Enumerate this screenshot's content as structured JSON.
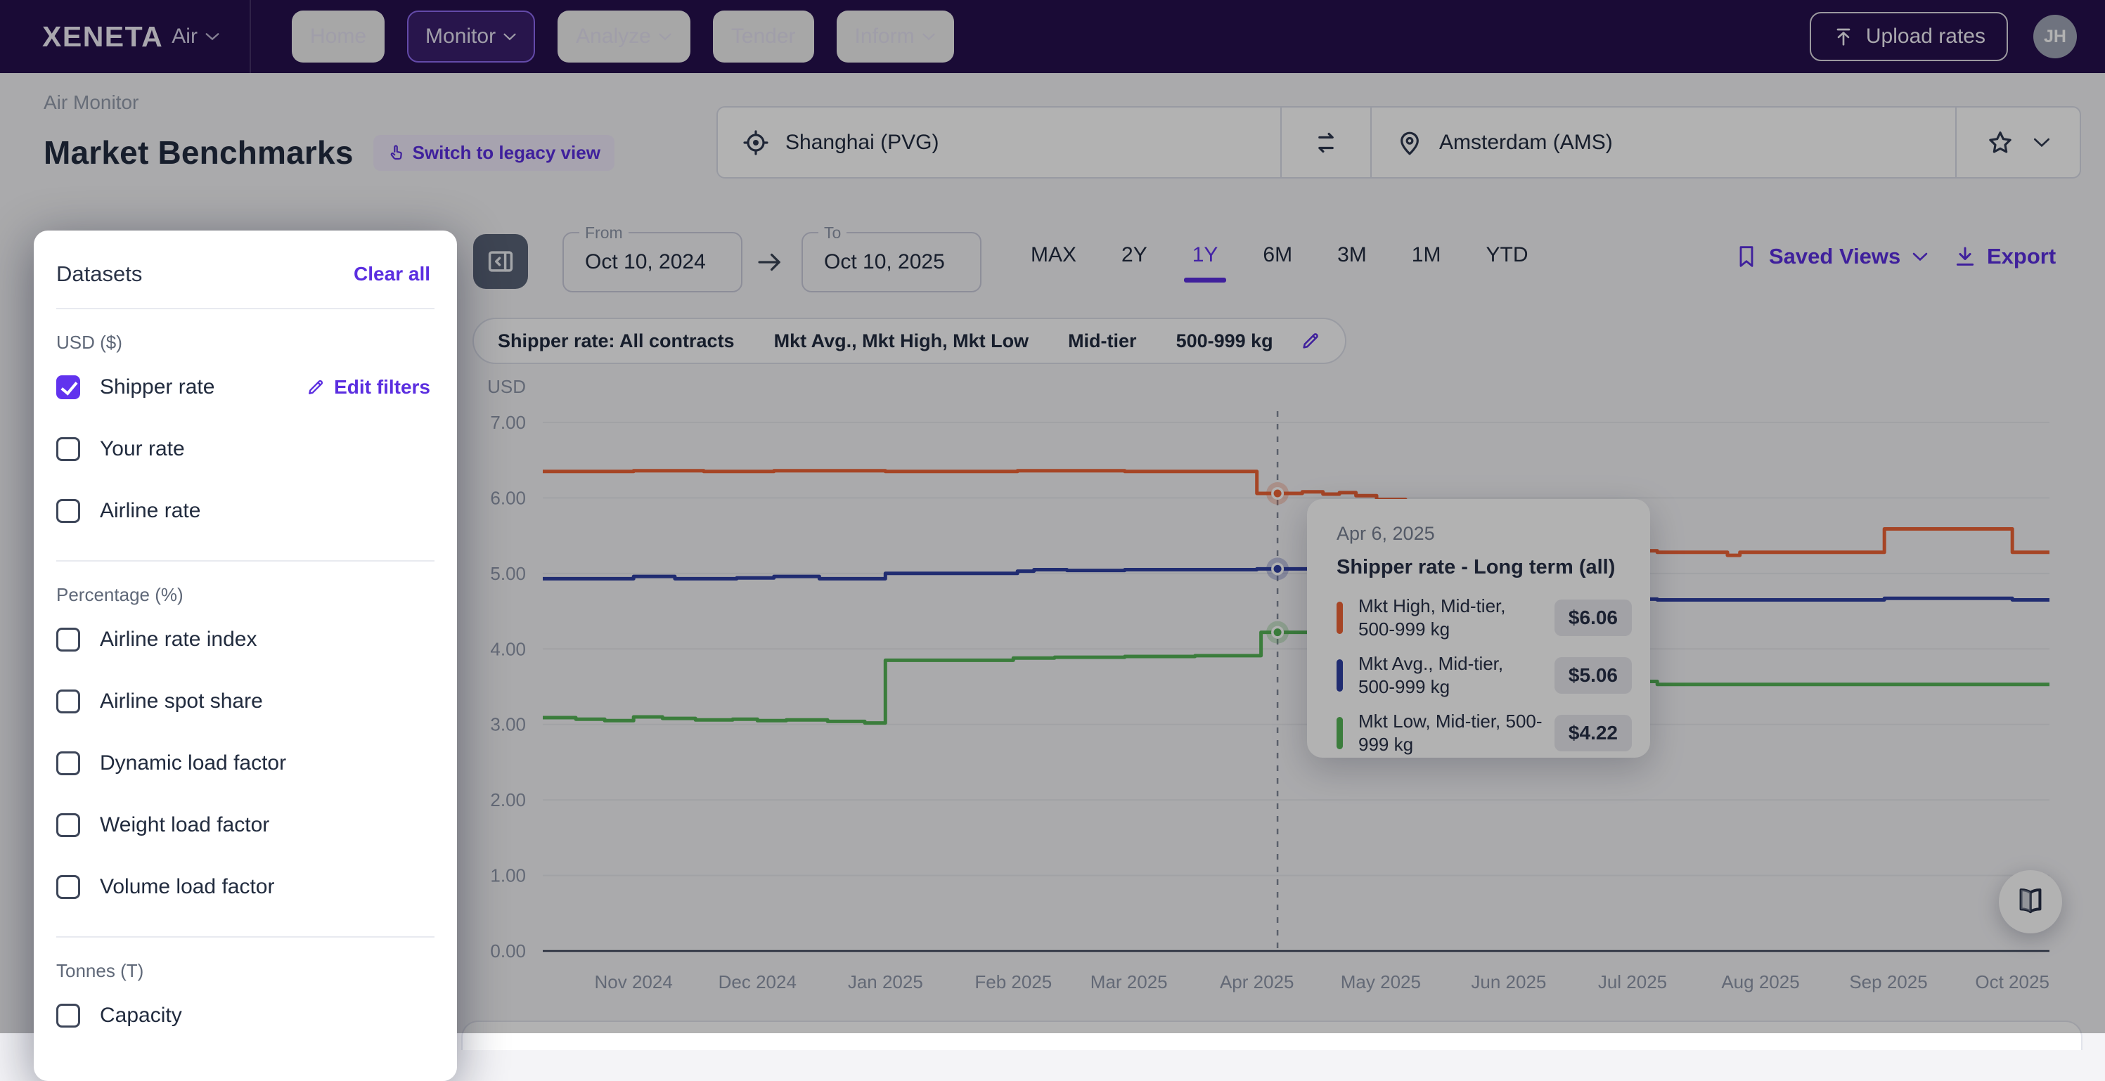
{
  "navbar": {
    "brand": "XENETA",
    "product": "Air",
    "items": [
      {
        "label": "Home",
        "caret": false,
        "active": false
      },
      {
        "label": "Monitor",
        "caret": true,
        "active": true
      },
      {
        "label": "Analyze",
        "caret": true,
        "active": false
      },
      {
        "label": "Tender",
        "caret": false,
        "active": false
      },
      {
        "label": "Inform",
        "caret": true,
        "active": false
      }
    ],
    "upload_label": "Upload rates",
    "avatar_initials": "JH"
  },
  "header": {
    "breadcrumb": "Air Monitor",
    "title": "Market Benchmarks",
    "switch_label": "Switch to legacy view",
    "origin": "Shanghai (PVG)",
    "destination": "Amsterdam (AMS)"
  },
  "sidebar": {
    "title": "Datasets",
    "clear_all": "Clear all",
    "sections": [
      {
        "label": "USD ($)",
        "items": [
          {
            "label": "Shipper rate",
            "checked": true,
            "action": "Edit filters"
          },
          {
            "label": "Your rate",
            "checked": false
          },
          {
            "label": "Airline rate",
            "checked": false
          }
        ]
      },
      {
        "label": "Percentage (%)",
        "items": [
          {
            "label": "Airline rate index",
            "checked": false
          },
          {
            "label": "Airline spot share",
            "checked": false
          },
          {
            "label": "Dynamic load factor",
            "checked": false
          },
          {
            "label": "Weight load factor",
            "checked": false
          },
          {
            "label": "Volume load factor",
            "checked": false
          }
        ]
      },
      {
        "label": "Tonnes (T)",
        "items": [
          {
            "label": "Capacity",
            "checked": false
          }
        ]
      }
    ]
  },
  "controls": {
    "from_label": "From",
    "from_value": "Oct 10, 2024",
    "to_label": "To",
    "to_value": "Oct 10, 2025",
    "ranges": [
      "MAX",
      "2Y",
      "1Y",
      "6M",
      "3M",
      "1M",
      "YTD"
    ],
    "active_range": "1Y",
    "saved_views_label": "Saved Views",
    "export_label": "Export"
  },
  "chips": {
    "items": [
      "Shipper rate: All contracts",
      "Mkt Avg., Mkt High, Mkt Low",
      "Mid-tier",
      "500-999 kg"
    ]
  },
  "chart_data": {
    "type": "line",
    "ylabel": "USD",
    "ylim": [
      0,
      7
    ],
    "yticks": [
      "0.00",
      "1.00",
      "2.00",
      "3.00",
      "4.00",
      "5.00",
      "6.00",
      "7.00"
    ],
    "grid": true,
    "legend": false,
    "x_range_days": [
      0,
      365
    ],
    "x_start_date": "Oct 10, 2024",
    "x_end_date": "Oct 10, 2025",
    "x_ticks": [
      {
        "label": "Nov 2024",
        "day": 22
      },
      {
        "label": "Dec 2024",
        "day": 52
      },
      {
        "label": "Jan 2025",
        "day": 83
      },
      {
        "label": "Feb 2025",
        "day": 114
      },
      {
        "label": "Mar 2025",
        "day": 142
      },
      {
        "label": "Apr 2025",
        "day": 173
      },
      {
        "label": "May 2025",
        "day": 203
      },
      {
        "label": "Jun 2025",
        "day": 234
      },
      {
        "label": "Jul 2025",
        "day": 264
      },
      {
        "label": "Aug 2025",
        "day": 295
      },
      {
        "label": "Sep 2025",
        "day": 326
      },
      {
        "label": "Oct 2025",
        "day": 356
      }
    ],
    "highlight_day": 178,
    "series": [
      {
        "name": "Mkt High, Mid-tier, 500-999 kg",
        "color": "#EE6336",
        "points": [
          [
            0,
            6.35
          ],
          [
            22,
            6.36
          ],
          [
            39,
            6.35
          ],
          [
            56,
            6.36
          ],
          [
            83,
            6.35
          ],
          [
            115,
            6.36
          ],
          [
            141,
            6.35
          ],
          [
            173,
            6.06
          ],
          [
            184,
            6.08
          ],
          [
            189,
            6.05
          ],
          [
            193,
            6.07
          ],
          [
            197,
            6.03
          ],
          [
            202,
            5.98
          ],
          [
            209,
            5.92
          ],
          [
            218,
            5.83
          ],
          [
            226,
            5.74
          ],
          [
            235,
            5.64
          ],
          [
            243,
            5.55
          ],
          [
            252,
            5.45
          ],
          [
            260,
            5.36
          ],
          [
            265,
            5.3
          ],
          [
            270,
            5.28
          ],
          [
            286,
            5.28
          ],
          [
            287,
            5.24
          ],
          [
            290,
            5.28
          ],
          [
            311,
            5.28
          ],
          [
            325,
            5.59
          ],
          [
            356,
            5.28
          ],
          [
            365,
            5.28
          ]
        ]
      },
      {
        "name": "Mkt Avg., Mid-tier, 500-999 kg",
        "color": "#2F3FA3",
        "points": [
          [
            0,
            4.93
          ],
          [
            22,
            4.96
          ],
          [
            32,
            4.93
          ],
          [
            47,
            4.94
          ],
          [
            56,
            4.96
          ],
          [
            67,
            4.93
          ],
          [
            83,
            5.0
          ],
          [
            98,
            5.0
          ],
          [
            115,
            5.03
          ],
          [
            119,
            5.05
          ],
          [
            127,
            5.04
          ],
          [
            141,
            5.05
          ],
          [
            158,
            5.05
          ],
          [
            173,
            5.06
          ],
          [
            189,
            5.06
          ],
          [
            202,
            5.02
          ],
          [
            212,
            4.96
          ],
          [
            226,
            4.88
          ],
          [
            240,
            4.8
          ],
          [
            253,
            4.72
          ],
          [
            265,
            4.66
          ],
          [
            270,
            4.65
          ],
          [
            325,
            4.67
          ],
          [
            356,
            4.65
          ],
          [
            365,
            4.65
          ]
        ]
      },
      {
        "name": "Mkt Low, Mid-tier, 500-999 kg",
        "color": "#55B356",
        "points": [
          [
            0,
            3.09
          ],
          [
            8,
            3.07
          ],
          [
            15,
            3.05
          ],
          [
            22,
            3.1
          ],
          [
            29,
            3.08
          ],
          [
            37,
            3.06
          ],
          [
            46,
            3.07
          ],
          [
            52,
            3.05
          ],
          [
            59,
            3.06
          ],
          [
            69,
            3.04
          ],
          [
            78,
            3.02
          ],
          [
            83,
            3.85
          ],
          [
            114,
            3.88
          ],
          [
            124,
            3.89
          ],
          [
            141,
            3.9
          ],
          [
            158,
            3.91
          ],
          [
            174,
            4.22
          ],
          [
            185,
            4.22
          ],
          [
            202,
            4.15
          ],
          [
            218,
            4.02
          ],
          [
            235,
            3.88
          ],
          [
            252,
            3.7
          ],
          [
            264,
            3.57
          ],
          [
            270,
            3.53
          ],
          [
            365,
            3.53
          ]
        ]
      }
    ]
  },
  "tooltip": {
    "date": "Apr 6, 2025",
    "title": "Shipper rate - Long term (all)",
    "rows": [
      {
        "label": "Mkt High, Mid-tier, 500-999 kg",
        "value": "$6.06",
        "numeric": 6.06,
        "color": "#EE6336"
      },
      {
        "label": "Mkt Avg., Mid-tier, 500-999 kg",
        "value": "$5.06",
        "numeric": 5.06,
        "color": "#2F3FA3"
      },
      {
        "label": "Mkt Low, Mid-tier, 500-999 kg",
        "value": "$4.22",
        "numeric": 4.22,
        "color": "#55B356"
      }
    ]
  },
  "colors": {
    "accent": "#5B2EE0",
    "checkbox_checked": "#6133EE",
    "navbar_bg": "#26104E",
    "series_high": "#EE6336",
    "series_avg": "#2F3FA3",
    "series_low": "#55B356",
    "grid_line": "#E7E8EC",
    "axis_line": "#3A4358",
    "dashed_line": "#828A9A"
  }
}
